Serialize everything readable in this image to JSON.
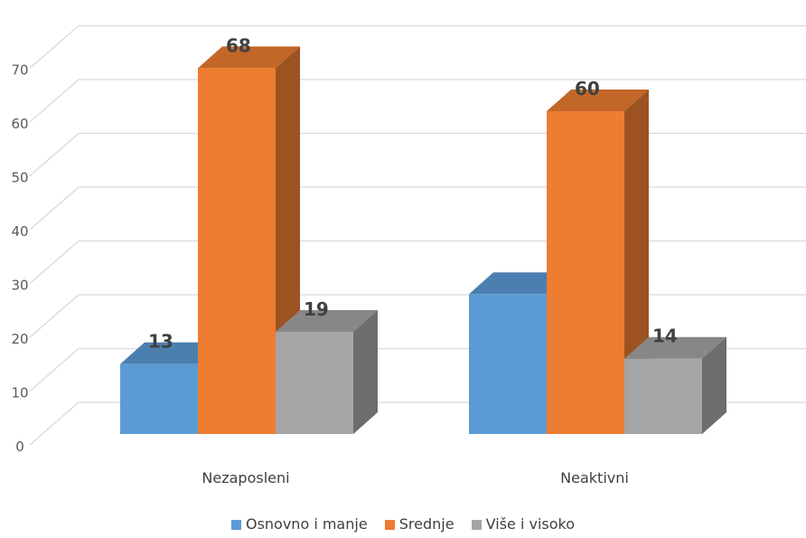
{
  "chart_data": {
    "type": "bar",
    "categories": [
      "Nezaposleni",
      "Neaktivni"
    ],
    "series": [
      {
        "name": "Osnovno i manje",
        "values": [
          13,
          26
        ],
        "labels": [
          "13",
          ""
        ],
        "color": "#5B9BD5"
      },
      {
        "name": "Srednje",
        "values": [
          68,
          60
        ],
        "labels": [
          "68",
          "60"
        ],
        "color": "#ED7D31"
      },
      {
        "name": "Više i visoko",
        "values": [
          19,
          14
        ],
        "labels": [
          "19",
          "14"
        ],
        "color": "#A5A5A5"
      }
    ],
    "ylim": [
      0,
      70
    ],
    "yticks": [
      0,
      10,
      20,
      30,
      40,
      50,
      60,
      70
    ],
    "grid": true,
    "three_d": true,
    "legend_position": "bottom"
  }
}
